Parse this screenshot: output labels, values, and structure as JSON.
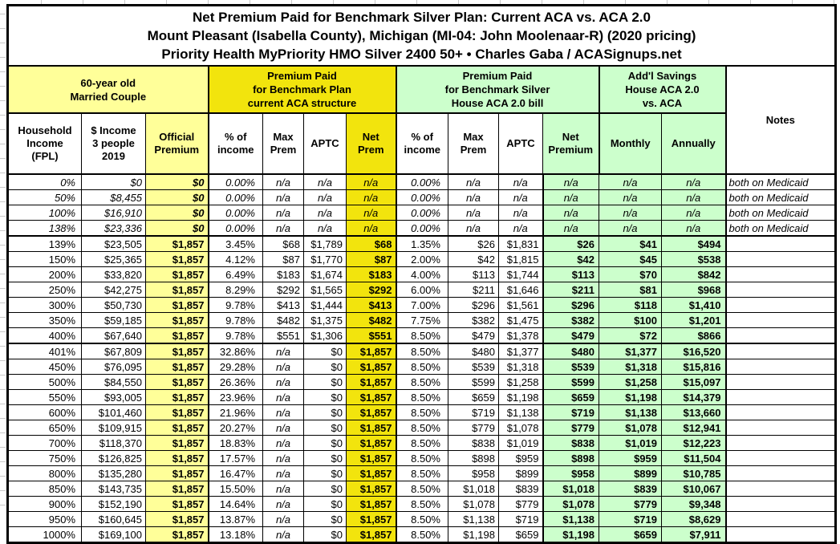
{
  "colors": {
    "pale_yellow": "#FFFF99",
    "bright_yellow": "#F2E40D",
    "light_green": "#CCFFCC",
    "border_black": "#000000",
    "gridline_gray": "#C9C9C9"
  },
  "header": {
    "line1": "Net Premium Paid for Benchmark Silver Plan: Current ACA vs. ACA 2.0",
    "line2": "Mount Pleasant (Isabella County), Michigan (MI-04: John Moolenaar-R) (2020 pricing)",
    "line3": "Priority Health MyPriority HMO Silver 2400 50+ • Charles Gaba / ACASignups.net"
  },
  "table": {
    "groups": {
      "household": "60-year old\nMarried Couple",
      "current_aca": "Premium Paid\nfor Benchmark Plan\ncurrent ACA structure",
      "house_aca20": "Premium Paid\nfor Benchmark Silver\nHouse ACA 2.0 bill",
      "savings": "Add'l Savings\nHouse ACA 2.0\nvs. ACA",
      "notes": "Notes"
    },
    "columns": [
      "Household\nIncome\n(FPL)",
      "$ Income\n3 people\n2019",
      "Official\nPremium",
      "% of\nincome",
      "Max\nPrem",
      "APTC",
      "Net\nPrem",
      "% of\nincome",
      "Max\nPrem",
      "APTC",
      "Net\nPremium",
      "Monthly",
      "Annually"
    ],
    "sections": [
      {
        "name": "medicaid",
        "rows": [
          [
            "0%",
            "$0",
            "$0",
            "0.00%",
            "n/a",
            "n/a",
            "n/a",
            "0.00%",
            "n/a",
            "n/a",
            "n/a",
            "n/a",
            "n/a",
            "both on Medicaid"
          ],
          [
            "50%",
            "$8,455",
            "$0",
            "0.00%",
            "n/a",
            "n/a",
            "n/a",
            "0.00%",
            "n/a",
            "n/a",
            "n/a",
            "n/a",
            "n/a",
            "both on Medicaid"
          ],
          [
            "100%",
            "$16,910",
            "$0",
            "0.00%",
            "n/a",
            "n/a",
            "n/a",
            "0.00%",
            "n/a",
            "n/a",
            "n/a",
            "n/a",
            "n/a",
            "both on Medicaid"
          ],
          [
            "138%",
            "$23,336",
            "$0",
            "0.00%",
            "n/a",
            "n/a",
            "n/a",
            "0.00%",
            "n/a",
            "n/a",
            "n/a",
            "n/a",
            "n/a",
            "both on Medicaid"
          ]
        ]
      },
      {
        "name": "subsidized",
        "rows": [
          [
            "139%",
            "$23,505",
            "$1,857",
            "3.45%",
            "$68",
            "$1,789",
            "$68",
            "1.35%",
            "$26",
            "$1,831",
            "$26",
            "$41",
            "$494",
            ""
          ],
          [
            "150%",
            "$25,365",
            "$1,857",
            "4.12%",
            "$87",
            "$1,770",
            "$87",
            "2.00%",
            "$42",
            "$1,815",
            "$42",
            "$45",
            "$538",
            ""
          ],
          [
            "200%",
            "$33,820",
            "$1,857",
            "6.49%",
            "$183",
            "$1,674",
            "$183",
            "4.00%",
            "$113",
            "$1,744",
            "$113",
            "$70",
            "$842",
            ""
          ],
          [
            "250%",
            "$42,275",
            "$1,857",
            "8.29%",
            "$292",
            "$1,565",
            "$292",
            "6.00%",
            "$211",
            "$1,646",
            "$211",
            "$81",
            "$968",
            ""
          ],
          [
            "300%",
            "$50,730",
            "$1,857",
            "9.78%",
            "$413",
            "$1,444",
            "$413",
            "7.00%",
            "$296",
            "$1,561",
            "$296",
            "$118",
            "$1,410",
            ""
          ],
          [
            "350%",
            "$59,185",
            "$1,857",
            "9.78%",
            "$482",
            "$1,375",
            "$482",
            "7.75%",
            "$382",
            "$1,475",
            "$382",
            "$100",
            "$1,201",
            ""
          ],
          [
            "400%",
            "$67,640",
            "$1,857",
            "9.78%",
            "$551",
            "$1,306",
            "$551",
            "8.50%",
            "$479",
            "$1,378",
            "$479",
            "$72",
            "$866",
            ""
          ]
        ]
      },
      {
        "name": "above-400",
        "rows": [
          [
            "401%",
            "$67,809",
            "$1,857",
            "32.86%",
            "n/a",
            "$0",
            "$1,857",
            "8.50%",
            "$480",
            "$1,377",
            "$480",
            "$1,377",
            "$16,520",
            ""
          ],
          [
            "450%",
            "$76,095",
            "$1,857",
            "29.28%",
            "n/a",
            "$0",
            "$1,857",
            "8.50%",
            "$539",
            "$1,318",
            "$539",
            "$1,318",
            "$15,816",
            ""
          ],
          [
            "500%",
            "$84,550",
            "$1,857",
            "26.36%",
            "n/a",
            "$0",
            "$1,857",
            "8.50%",
            "$599",
            "$1,258",
            "$599",
            "$1,258",
            "$15,097",
            ""
          ],
          [
            "550%",
            "$93,005",
            "$1,857",
            "23.96%",
            "n/a",
            "$0",
            "$1,857",
            "8.50%",
            "$659",
            "$1,198",
            "$659",
            "$1,198",
            "$14,379",
            ""
          ],
          [
            "600%",
            "$101,460",
            "$1,857",
            "21.96%",
            "n/a",
            "$0",
            "$1,857",
            "8.50%",
            "$719",
            "$1,138",
            "$719",
            "$1,138",
            "$13,660",
            ""
          ],
          [
            "650%",
            "$109,915",
            "$1,857",
            "20.27%",
            "n/a",
            "$0",
            "$1,857",
            "8.50%",
            "$779",
            "$1,078",
            "$779",
            "$1,078",
            "$12,941",
            ""
          ],
          [
            "700%",
            "$118,370",
            "$1,857",
            "18.83%",
            "n/a",
            "$0",
            "$1,857",
            "8.50%",
            "$838",
            "$1,019",
            "$838",
            "$1,019",
            "$12,223",
            ""
          ],
          [
            "750%",
            "$126,825",
            "$1,857",
            "17.57%",
            "n/a",
            "$0",
            "$1,857",
            "8.50%",
            "$898",
            "$959",
            "$898",
            "$959",
            "$11,504",
            ""
          ],
          [
            "800%",
            "$135,280",
            "$1,857",
            "16.47%",
            "n/a",
            "$0",
            "$1,857",
            "8.50%",
            "$958",
            "$899",
            "$958",
            "$899",
            "$10,785",
            ""
          ],
          [
            "850%",
            "$143,735",
            "$1,857",
            "15.50%",
            "n/a",
            "$0",
            "$1,857",
            "8.50%",
            "$1,018",
            "$839",
            "$1,018",
            "$839",
            "$10,067",
            ""
          ],
          [
            "900%",
            "$152,190",
            "$1,857",
            "14.64%",
            "n/a",
            "$0",
            "$1,857",
            "8.50%",
            "$1,078",
            "$779",
            "$1,078",
            "$779",
            "$9,348",
            ""
          ],
          [
            "950%",
            "$160,645",
            "$1,857",
            "13.87%",
            "n/a",
            "$0",
            "$1,857",
            "8.50%",
            "$1,138",
            "$719",
            "$1,138",
            "$719",
            "$8,629",
            ""
          ],
          [
            "1000%",
            "$169,100",
            "$1,857",
            "13.18%",
            "n/a",
            "$0",
            "$1,857",
            "8.50%",
            "$1,198",
            "$659",
            "$1,198",
            "$659",
            "$7,911",
            ""
          ]
        ]
      }
    ]
  }
}
